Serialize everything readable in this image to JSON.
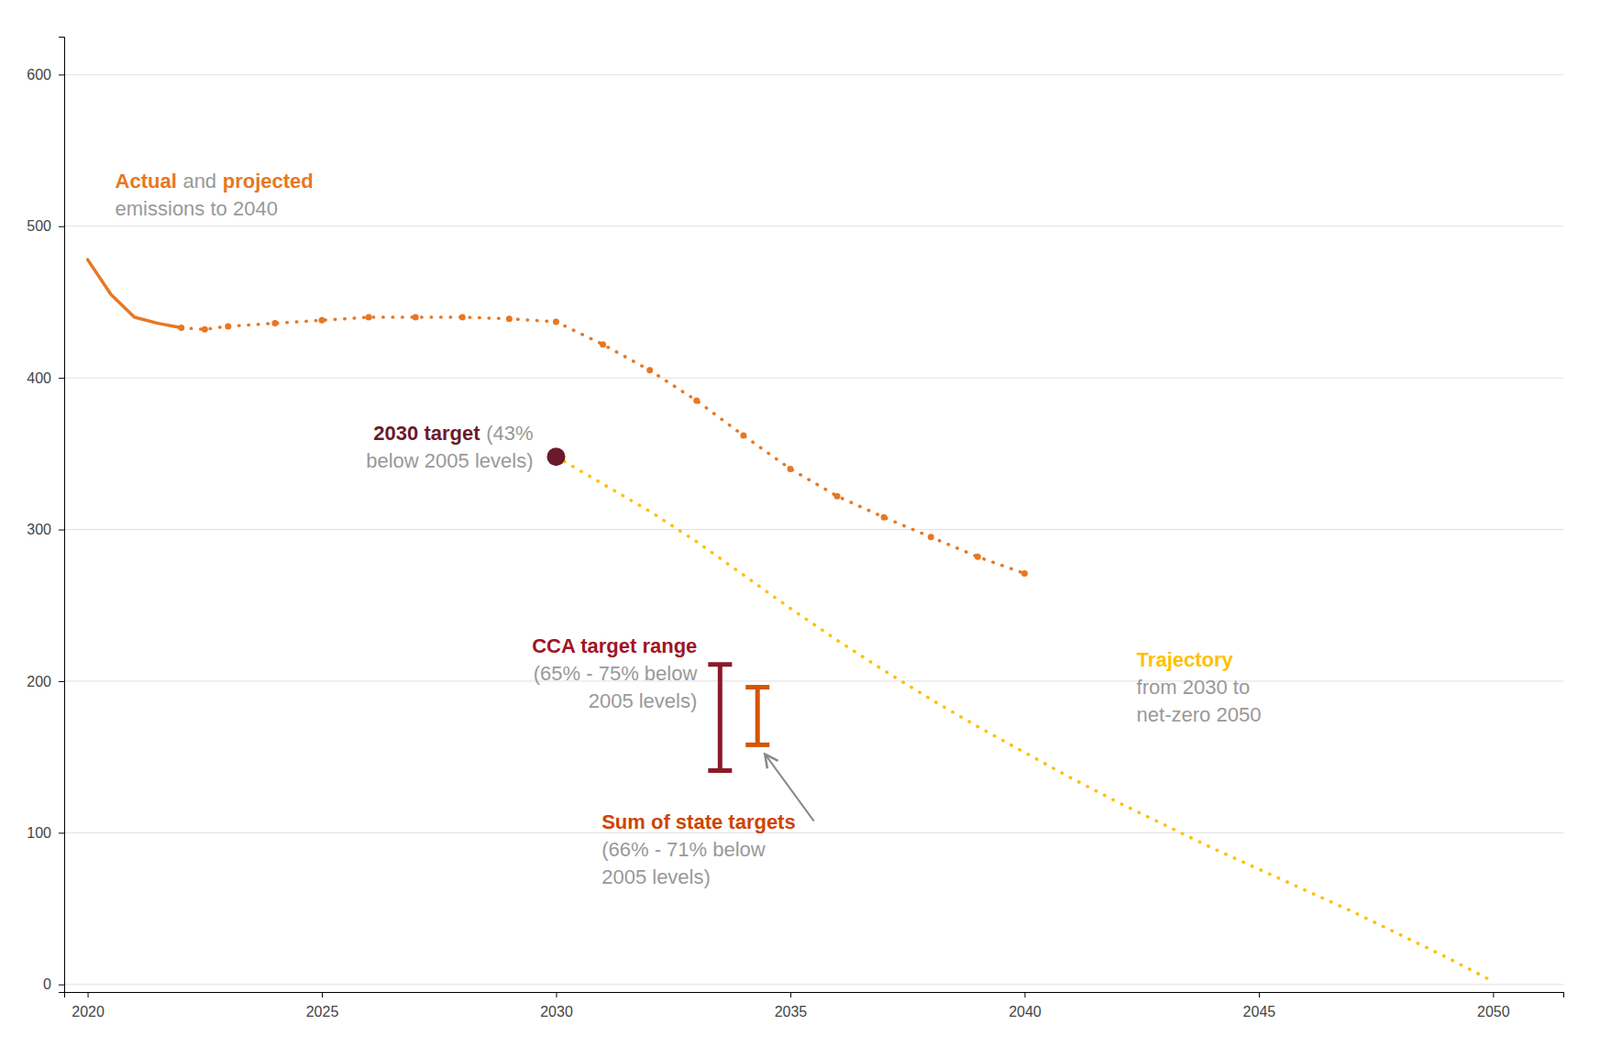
{
  "chart_data": {
    "type": "line",
    "xlim": [
      2019.5,
      2051.5
    ],
    "ylim": [
      -5,
      625
    ],
    "xticks": [
      2020,
      2025,
      2030,
      2035,
      2040,
      2045,
      2050
    ],
    "yticks": [
      0,
      100,
      200,
      300,
      400,
      500,
      600
    ],
    "grid": true,
    "series": [
      {
        "type": "line",
        "color": "#E87722",
        "line_style": "solid",
        "x": [
          2020,
          2020.5,
          2021,
          2021.5,
          2022
        ],
        "values": [
          478,
          455,
          440,
          436,
          433
        ],
        "annotation": [
          [
            {
              "text": "Actual",
              "color": "#E87722"
            },
            {
              "text": "and",
              "color": "#999999"
            },
            {
              "text": "projected",
              "color": "#E87722"
            }
          ],
          [
            {
              "text": "emissions to 2040",
              "color": "#999999"
            }
          ]
        ]
      },
      {
        "type": "line",
        "color": "#E87722",
        "line_style": "dotted",
        "marker": "circle",
        "x": [
          2022,
          2022.5,
          2023,
          2024,
          2025,
          2026,
          2027,
          2028,
          2029,
          2030,
          2031,
          2032,
          2033,
          2034,
          2035,
          2036,
          2037,
          2038,
          2039,
          2040
        ],
        "values": [
          433,
          432,
          434,
          436,
          438,
          440,
          440,
          440,
          439,
          437,
          422,
          405,
          385,
          362,
          340,
          322,
          308,
          295,
          282,
          271
        ]
      },
      {
        "type": "line",
        "color": "#FFC000",
        "line_style": "dotted",
        "x": [
          2030,
          2031,
          2032,
          2033,
          2034,
          2035,
          2036,
          2037,
          2038,
          2039,
          2040,
          2041,
          2042,
          2043,
          2044,
          2045,
          2046,
          2047,
          2048,
          2049,
          2050
        ],
        "values": [
          348,
          330,
          312,
          292,
          270,
          248,
          227,
          207,
          188,
          170,
          153,
          136,
          120,
          105,
          90,
          76,
          62,
          48,
          33,
          18,
          2
        ],
        "annotation": [
          [
            {
              "text": "Trajectory",
              "color": "#FFC000"
            }
          ],
          [
            {
              "text": "from 2030 to",
              "color": "#999999"
            }
          ],
          [
            {
              "text": "net-zero 2050",
              "color": "#999999"
            }
          ]
        ]
      },
      {
        "type": "scatter",
        "color": "#6B1A2B",
        "marker": "circle",
        "x": [
          2030
        ],
        "values": [
          348
        ],
        "annotation": [
          [
            {
              "text": "2030 target",
              "color": "#6B1A2B"
            },
            {
              "text": "(43%",
              "color": "#999999"
            }
          ],
          [
            {
              "text": "below 2005 levels)",
              "color": "#999999"
            }
          ]
        ]
      },
      {
        "type": "range",
        "color": "#8B1A2B",
        "x": [
          2033.5
        ],
        "low": [
          141
        ],
        "high": [
          211
        ],
        "annotation": [
          [
            {
              "text": "CCA target range",
              "color": "#A01525"
            }
          ],
          [
            {
              "text": "(65% - 75% below",
              "color": "#999999"
            }
          ],
          [
            {
              "text": "2005 levels)",
              "color": "#999999"
            }
          ]
        ]
      },
      {
        "type": "range",
        "color": "#D45500",
        "x": [
          2034.3
        ],
        "low": [
          158
        ],
        "high": [
          196
        ],
        "annotation": [
          [
            {
              "text": "Sum of state targets",
              "color": "#CC4400"
            }
          ],
          [
            {
              "text": "(66% - 71% below",
              "color": "#999999"
            }
          ],
          [
            {
              "text": "2005 levels)",
              "color": "#999999"
            }
          ]
        ]
      }
    ]
  }
}
